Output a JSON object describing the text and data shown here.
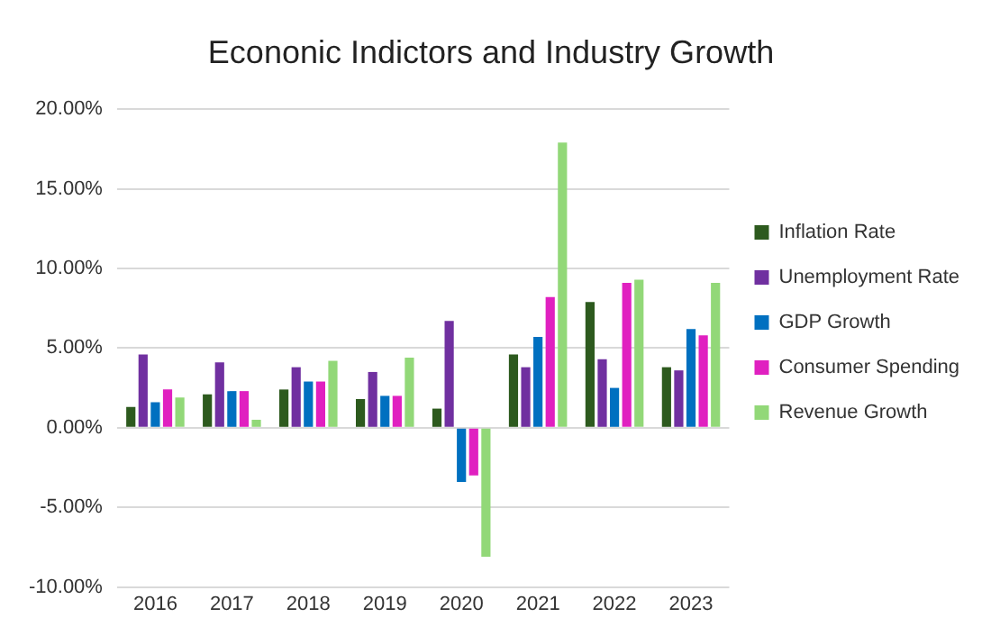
{
  "chart_data": {
    "type": "bar",
    "title": "Econonic Indictors and Industry Growth",
    "categories": [
      "2016",
      "2017",
      "2018",
      "2019",
      "2020",
      "2021",
      "2022",
      "2023"
    ],
    "series": [
      {
        "name": "Inflation Rate",
        "color": "#2d5a1e",
        "values": [
          1.3,
          2.1,
          2.4,
          1.8,
          1.2,
          4.6,
          7.9,
          3.8
        ]
      },
      {
        "name": "Unemployment Rate",
        "color": "#7030a0",
        "values": [
          4.6,
          4.1,
          3.8,
          3.5,
          6.7,
          3.8,
          4.3,
          3.6
        ]
      },
      {
        "name": "GDP Growth",
        "color": "#0070c0",
        "values": [
          1.6,
          2.3,
          2.9,
          2.0,
          -3.4,
          5.7,
          2.5,
          6.2
        ]
      },
      {
        "name": "Consumer Spending",
        "color": "#e020c0",
        "values": [
          2.4,
          2.3,
          2.9,
          2.0,
          -3.0,
          8.2,
          9.1,
          5.8
        ]
      },
      {
        "name": "Revenue Growth",
        "color": "#92d878",
        "values": [
          1.9,
          0.5,
          4.2,
          4.4,
          -8.1,
          17.9,
          9.3,
          9.1
        ]
      }
    ],
    "ylim": [
      -10,
      20
    ],
    "yticks": [
      {
        "value": -10,
        "label": "-10.00%"
      },
      {
        "value": -5,
        "label": "-5.00%"
      },
      {
        "value": 0,
        "label": "0.00%"
      },
      {
        "value": 5,
        "label": "5.00%"
      },
      {
        "value": 10,
        "label": "10.00%"
      },
      {
        "value": 15,
        "label": "15.00%"
      },
      {
        "value": 20,
        "label": "20.00%"
      }
    ],
    "grid": "y",
    "legend": "right"
  }
}
